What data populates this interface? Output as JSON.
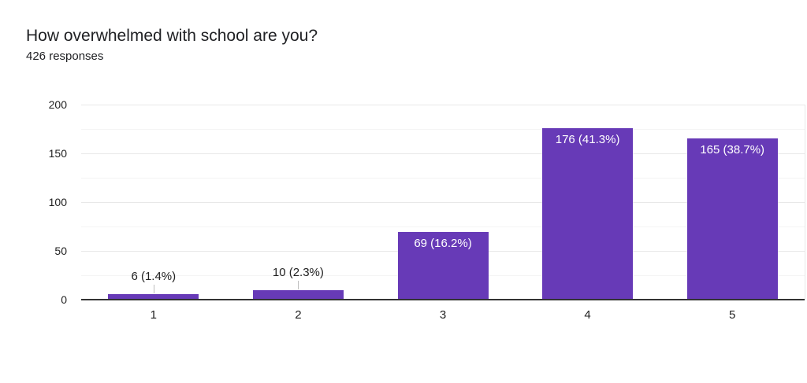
{
  "header": {
    "title": "How overwhelmed with school are you?",
    "subtitle": "426 responses"
  },
  "colors": {
    "bar_fill": "#673ab7",
    "title_text": "#202124",
    "axis_text": "#1f1f1f",
    "inside_label_text": "#ffffff",
    "outside_label_text": "#212121",
    "gridline_major": "#e8e8e8",
    "gridline_minor": "#f4f4f4",
    "baseline": "#333333",
    "leader_line": "#bdbdbd",
    "background": "#ffffff"
  },
  "chart_data": {
    "type": "bar",
    "title": "How overwhelmed with school are you?",
    "subtitle": "426 responses",
    "categories": [
      "1",
      "2",
      "3",
      "4",
      "5"
    ],
    "values": [
      6,
      10,
      69,
      176,
      165
    ],
    "bar_labels": [
      "6 (1.4%)",
      "10 (2.3%)",
      "69 (16.2%)",
      "176 (41.3%)",
      "165 (38.7%)"
    ],
    "label_placement": [
      "outside",
      "outside",
      "inside",
      "inside",
      "inside"
    ],
    "xlabel": "",
    "ylabel": "",
    "ylim": [
      0,
      200
    ],
    "ytick_labels": [
      "0",
      "50",
      "100",
      "150",
      "200"
    ],
    "yticks": [
      0,
      50,
      100,
      150,
      200
    ],
    "minor_gridlines": [
      25,
      75,
      125,
      175
    ],
    "grid": true,
    "legend": "none",
    "bar_color": "#673ab7",
    "total_responses": 426
  }
}
